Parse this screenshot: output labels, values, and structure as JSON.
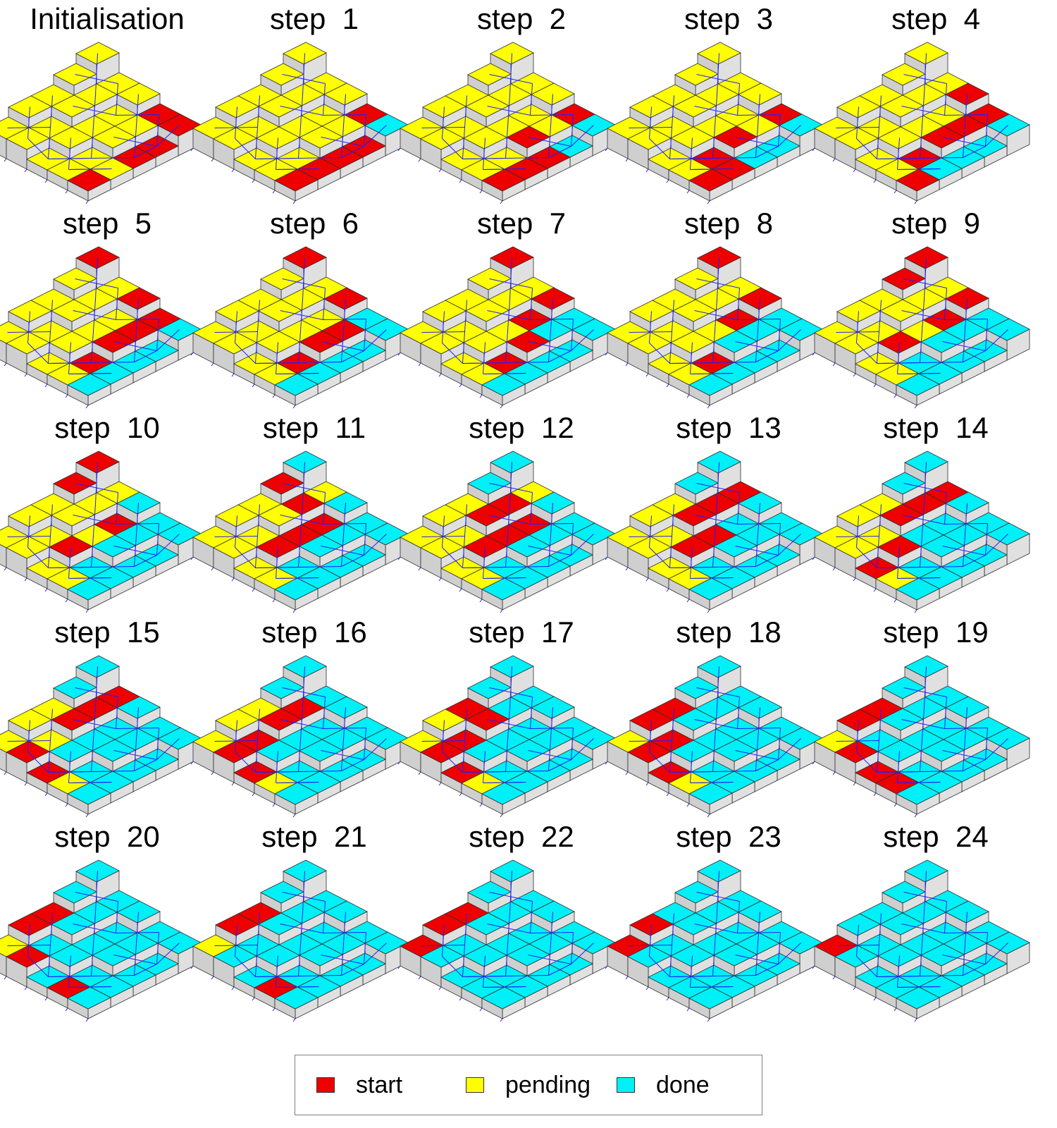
{
  "colors": {
    "start": "#ee0000",
    "pending": "#ffff00",
    "done": "#00f0f8",
    "side": "#e0e0e0",
    "edge": "#303030",
    "flow": "#2020ff"
  },
  "panels": [
    {
      "title": "Initialisation",
      "stage": 0
    },
    {
      "title": "step  1",
      "stage": 1
    },
    {
      "title": "step  2",
      "stage": 2
    },
    {
      "title": "step  3",
      "stage": 3
    },
    {
      "title": "step  4",
      "stage": 4
    },
    {
      "title": "step  5",
      "stage": 5
    },
    {
      "title": "step  6",
      "stage": 6
    },
    {
      "title": "step  7",
      "stage": 7
    },
    {
      "title": "step  8",
      "stage": 8
    },
    {
      "title": "step  9",
      "stage": 9
    },
    {
      "title": "step  10",
      "stage": 10
    },
    {
      "title": "step  11",
      "stage": 11
    },
    {
      "title": "step  12",
      "stage": 12
    },
    {
      "title": "step  13",
      "stage": 13
    },
    {
      "title": "step  14",
      "stage": 14
    },
    {
      "title": "step  15",
      "stage": 15
    },
    {
      "title": "step  16",
      "stage": 16
    },
    {
      "title": "step  17",
      "stage": 17
    },
    {
      "title": "step  18",
      "stage": 18
    },
    {
      "title": "step  19",
      "stage": 19
    },
    {
      "title": "step  20",
      "stage": 20
    },
    {
      "title": "step  21",
      "stage": 21
    },
    {
      "title": "step  22",
      "stage": 22
    },
    {
      "title": "step  23",
      "stage": 23
    },
    {
      "title": "step  24",
      "stage": 24
    }
  ],
  "legend": {
    "start": "start",
    "pending": "pending",
    "done": "done"
  }
}
